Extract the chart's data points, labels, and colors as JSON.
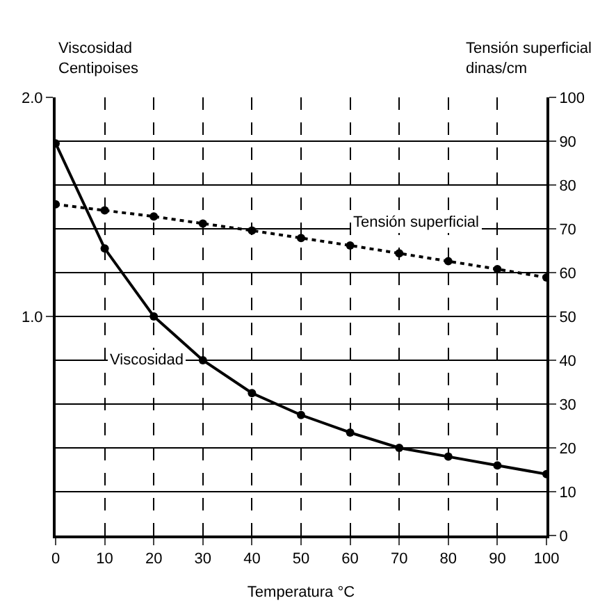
{
  "chart_data": {
    "type": "line",
    "xlabel": "Temperatura °C",
    "ylabel": "Viscosidad Centipoises",
    "y2label": "Tensión superficial dinas/cm",
    "x": [
      0,
      10,
      20,
      30,
      40,
      50,
      60,
      70,
      80,
      90,
      100
    ],
    "series": [
      {
        "name": "Viscosidad",
        "color": "#000000",
        "values": [
          1.79,
          1.31,
          1.0,
          0.8,
          0.65,
          0.55,
          0.47,
          0.4,
          0.36,
          0.32,
          0.28
        ],
        "line_style": "solid"
      },
      {
        "name": "Tensión superficial",
        "color": "#000000",
        "axis": "y2",
        "values": [
          75.6,
          74.2,
          72.8,
          71.2,
          69.6,
          67.9,
          66.2,
          64.4,
          62.6,
          60.8,
          58.9
        ],
        "line_style": "dotted"
      }
    ],
    "xlim": [
      0,
      100
    ],
    "xticks": [
      0,
      10,
      20,
      30,
      40,
      50,
      60,
      70,
      80,
      90,
      100
    ],
    "ylim": [
      0,
      2
    ],
    "yticks": [
      {
        "value": 1,
        "label": "1.0"
      },
      {
        "value": 2,
        "label": "2.0"
      }
    ],
    "y2lim": [
      0,
      100
    ],
    "y2ticks": [
      0,
      10,
      20,
      30,
      40,
      50,
      60,
      70,
      80,
      90,
      100
    ],
    "grid": true,
    "legend": false,
    "marker": "circle"
  }
}
